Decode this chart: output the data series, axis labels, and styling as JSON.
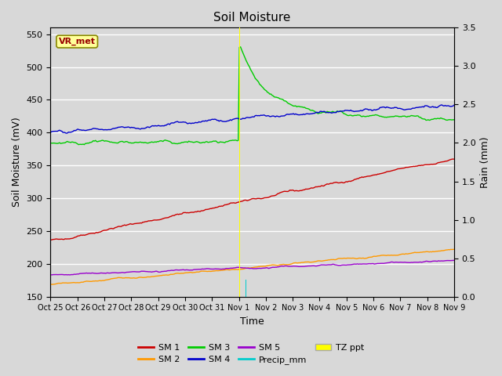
{
  "title": "Soil Moisture",
  "xlabel": "Time",
  "ylabel_left": "Soil Moisture (mV)",
  "ylabel_right": "Rain (mm)",
  "ylim_left": [
    150,
    560
  ],
  "ylim_right": [
    0.0,
    3.5
  ],
  "fig_bg_color": "#d8d8d8",
  "plot_bg_color": "#d8d8d8",
  "label_box_text": "VR_met",
  "label_box_color": "#ffff99",
  "label_box_text_color": "#990000",
  "tick_labels": [
    "Oct 25",
    "Oct 26",
    "Oct 27",
    "Oct 28",
    "Oct 29",
    "Oct 30",
    "Oct 31",
    "Nov 1",
    "Nov 2",
    "Nov 3",
    "Nov 4",
    "Nov 5",
    "Nov 6",
    "Nov 7",
    "Nov 8",
    "Nov 9"
  ],
  "colors": {
    "SM1": "#cc0000",
    "SM2": "#ff9900",
    "SM3": "#00cc00",
    "SM4": "#0000cc",
    "SM5": "#9900cc",
    "Precip": "#00cccc",
    "TZ_ppt": "#ffff00"
  },
  "grid_color": "#ffffff"
}
